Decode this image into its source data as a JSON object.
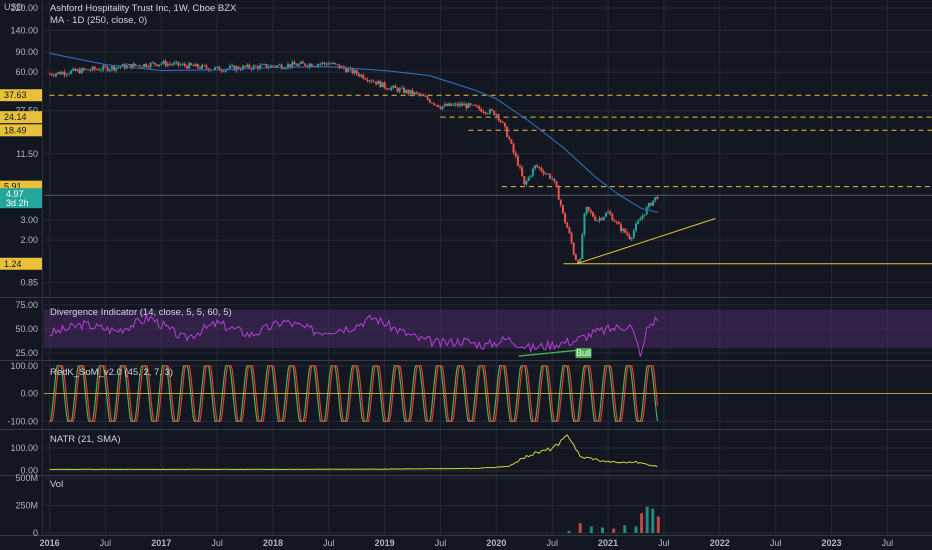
{
  "header": {
    "currency": "USD",
    "symbol_line": "Ashford Hospitality Trust Inc, 1W, Cboe BZX",
    "ma_line": "MA · 1D (250, close, 0)"
  },
  "colors": {
    "background": "#131722",
    "grid": "#262a36",
    "up": "#26a69a",
    "down": "#ef5350",
    "ma": "#2f6cb8",
    "level": "#e8c03a",
    "divergence": "#b43fd6",
    "divergence_band": "#4a2a66",
    "stoch_k": "#4caf50",
    "stoch_d": "#e53935",
    "natr": "#d8d23a",
    "last_price_tag": "#26a69a",
    "divergence_line": "#4caf50"
  },
  "chart_data": [
    {
      "type": "candlestick",
      "name": "price",
      "y_scale": "log",
      "ylim": [
        0.7,
        220
      ],
      "y_ticks": [
        "220.00",
        "140.00",
        "90.00",
        "60.00",
        "27.50",
        "11.50",
        "3.00",
        "2.00",
        "0.85"
      ],
      "x": [
        2016.0,
        2016.5,
        2017.0,
        2017.5,
        2018.0,
        2018.5,
        2019.0,
        2019.3,
        2019.5,
        2019.7,
        2020.0,
        2020.15,
        2020.25,
        2020.35,
        2020.5,
        2020.6,
        2020.7,
        2020.75,
        2020.8,
        2020.9,
        2021.0,
        2021.1,
        2021.2,
        2021.3,
        2021.38,
        2021.45
      ],
      "close": [
        58,
        65,
        72,
        64,
        68,
        72,
        45,
        38,
        30,
        31,
        26,
        12,
        6,
        9,
        7,
        3.2,
        1.4,
        1.3,
        3.8,
        3.0,
        3.5,
        2.6,
        2.1,
        3.2,
        4.2,
        4.97
      ],
      "ma": {
        "name": "MA · 1D (250, close, 0)",
        "x": [
          2016.0,
          2016.5,
          2017.0,
          2017.5,
          2018.0,
          2018.5,
          2019.0,
          2019.4,
          2019.8,
          2020.0,
          2020.3,
          2020.6,
          2020.9,
          2021.1,
          2021.3,
          2021.45
        ],
        "y": [
          88,
          70,
          62,
          63,
          66,
          67,
          62,
          56,
          42,
          35,
          22,
          13,
          7,
          5.0,
          3.8,
          3.5
        ]
      },
      "levels": [
        {
          "value": 37.63,
          "label": "37.63",
          "x_start": 2016.0,
          "style": "dashed"
        },
        {
          "value": 24.14,
          "label": "24.14",
          "x_start": 2019.5,
          "style": "dashed"
        },
        {
          "value": 18.49,
          "label": "18.49",
          "x_start": 2019.75,
          "style": "dashed"
        },
        {
          "value": 5.91,
          "label": "5.91",
          "x_start": 2020.05,
          "style": "dashed"
        },
        {
          "value": 1.24,
          "label": "1.24",
          "x_start": 2020.6,
          "style": "solid"
        }
      ],
      "trendline": {
        "x": [
          2020.72,
          2021.96
        ],
        "y": [
          1.24,
          3.1
        ]
      },
      "last_price": {
        "value": 4.97,
        "label": "4.97",
        "countdown": "3d 2h"
      }
    },
    {
      "type": "line",
      "name": "Divergence Indicator (14, close, 5, 5, 60, 5)",
      "ylim": [
        20,
        80
      ],
      "y_ticks": [
        "75.00",
        "50.00",
        "25.00"
      ],
      "band": [
        30,
        70
      ],
      "x": [
        2016.0,
        2016.3,
        2016.6,
        2016.9,
        2017.2,
        2017.5,
        2017.8,
        2018.1,
        2018.4,
        2018.7,
        2018.9,
        2019.1,
        2019.3,
        2019.5,
        2019.7,
        2019.9,
        2020.1,
        2020.3,
        2020.5,
        2020.7,
        2020.9,
        2021.1,
        2021.2,
        2021.3,
        2021.35,
        2021.45
      ],
      "y": [
        45,
        55,
        48,
        62,
        40,
        56,
        44,
        58,
        47,
        52,
        62,
        50,
        40,
        35,
        38,
        33,
        40,
        30,
        34,
        38,
        47,
        52,
        54,
        22,
        52,
        62
      ],
      "annotation": {
        "label": "Bull",
        "x": 2020.78,
        "y": 24
      },
      "divergence_line": {
        "x": [
          2020.2,
          2020.72
        ],
        "y": [
          22,
          28
        ]
      }
    },
    {
      "type": "line",
      "name": "RedK_SoM_v2.0 (45, 2, 7, 3)",
      "ylim": [
        -120,
        110
      ],
      "y_ticks": [
        "100.00",
        "0.00",
        "-100.00"
      ],
      "cycles_per_year": 5.3,
      "amplitude": 100,
      "series": [
        {
          "name": "K",
          "color_key": "stoch_k"
        },
        {
          "name": "D",
          "color_key": "stoch_d"
        }
      ]
    },
    {
      "type": "line",
      "name": "NATR (21, SMA)",
      "ylim": [
        -10,
        170
      ],
      "y_ticks": [
        "100.00",
        "0.00"
      ],
      "x": [
        2016.0,
        2017.0,
        2018.0,
        2019.0,
        2019.8,
        2020.1,
        2020.3,
        2020.45,
        2020.55,
        2020.65,
        2020.75,
        2020.85,
        2020.95,
        2021.1,
        2021.25,
        2021.45
      ],
      "y": [
        6,
        6,
        6,
        7,
        10,
        18,
        70,
        90,
        110,
        158,
        60,
        55,
        42,
        36,
        38,
        18
      ]
    },
    {
      "type": "bar",
      "name": "Vol",
      "ylim": [
        0,
        500000000
      ],
      "y_ticks": [
        "500M",
        "250M",
        "0"
      ],
      "x": [
        2020.65,
        2020.75,
        2020.85,
        2020.95,
        2021.05,
        2021.15,
        2021.25,
        2021.3,
        2021.35,
        2021.4,
        2021.45
      ],
      "values": [
        20000000,
        90000000,
        60000000,
        50000000,
        40000000,
        70000000,
        60000000,
        180000000,
        240000000,
        220000000,
        150000000
      ]
    }
  ],
  "x_axis": {
    "range": [
      2015.95,
      2023.9
    ],
    "ticks": [
      {
        "label": "2016",
        "year": 2016.0,
        "bold": true
      },
      {
        "label": "Jul",
        "year": 2016.5
      },
      {
        "label": "2017",
        "year": 2017.0,
        "bold": true
      },
      {
        "label": "Jul",
        "year": 2017.5
      },
      {
        "label": "2018",
        "year": 2018.0,
        "bold": true
      },
      {
        "label": "Jul",
        "year": 2018.5
      },
      {
        "label": "2019",
        "year": 2019.0,
        "bold": true
      },
      {
        "label": "Jul",
        "year": 2019.5
      },
      {
        "label": "2020",
        "year": 2020.0,
        "bold": true
      },
      {
        "label": "Jul",
        "year": 2020.5
      },
      {
        "label": "2021",
        "year": 2021.0,
        "bold": true
      },
      {
        "label": "Jul",
        "year": 2021.5
      },
      {
        "label": "2022",
        "year": 2022.0,
        "bold": true
      },
      {
        "label": "Jul",
        "year": 2022.5
      },
      {
        "label": "2023",
        "year": 2023.0,
        "bold": true
      },
      {
        "label": "Jul",
        "year": 2023.5
      }
    ]
  }
}
